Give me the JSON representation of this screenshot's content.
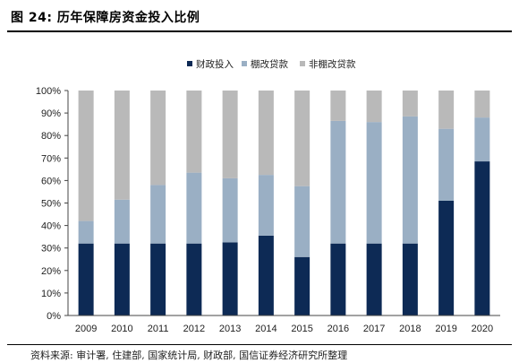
{
  "header": {
    "title": "图 24:  历年保障房资金投入比例"
  },
  "footer": {
    "source": "资料来源: 审计署, 住建部, 国家统计局, 财政部, 国信证券经济研究所整理"
  },
  "chart_data": {
    "type": "bar",
    "stacked": true,
    "categories": [
      "2009",
      "2010",
      "2011",
      "2012",
      "2013",
      "2014",
      "2015",
      "2016",
      "2017",
      "2018",
      "2019",
      "2020"
    ],
    "series": [
      {
        "name": "财政投入",
        "color": "#0d2a55",
        "values": [
          32,
          32,
          32,
          32,
          32.5,
          35.5,
          26,
          32,
          32,
          32,
          51,
          68.5
        ]
      },
      {
        "name": "棚改贷款",
        "color": "#9aafc4",
        "values": [
          10,
          19.5,
          26,
          31.5,
          28.5,
          27,
          31.5,
          54.5,
          54,
          56.5,
          32,
          19.5
        ]
      },
      {
        "name": "非棚改贷款",
        "color": "#b9b9b9",
        "values": [
          58,
          48.5,
          42,
          36.5,
          39,
          37.5,
          42.5,
          13.5,
          14,
          11.5,
          17,
          12
        ]
      }
    ],
    "ylim": [
      0,
      100
    ],
    "yticks": [
      "0%",
      "10%",
      "20%",
      "30%",
      "40%",
      "50%",
      "60%",
      "70%",
      "80%",
      "90%",
      "100%"
    ],
    "legend_position": "top-center",
    "grid": false
  }
}
